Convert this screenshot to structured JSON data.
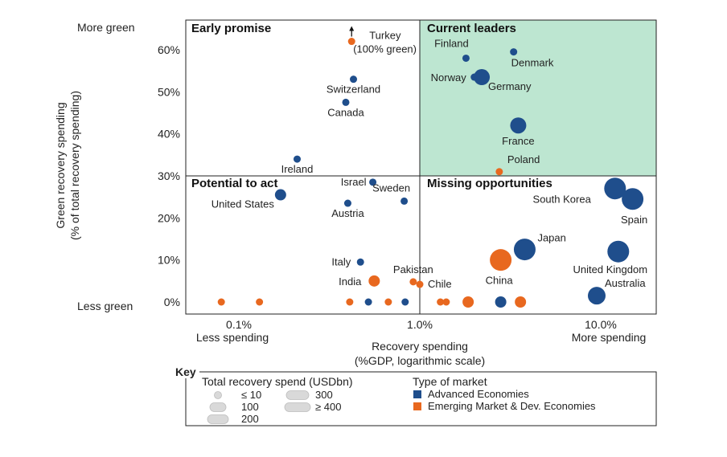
{
  "chart_data": {
    "type": "scatter",
    "xlabel": "Recovery spending",
    "xlabel_sub": "(%GDP, logarithmic scale)",
    "ylabel": "Green recovery spending",
    "ylabel_sub": "(% of total recovery spending)",
    "x_scale": "log",
    "xlim": [
      0.05,
      20
    ],
    "ylim": [
      -2,
      66
    ],
    "x_ticks": [
      {
        "value": 0.1,
        "label": "0.1%"
      },
      {
        "value": 1.0,
        "label": "1.0%"
      },
      {
        "value": 10.0,
        "label": "10.0%"
      }
    ],
    "y_ticks": [
      {
        "value": 0,
        "label": "0%"
      },
      {
        "value": 10,
        "label": "10%"
      },
      {
        "value": 20,
        "label": "20%"
      },
      {
        "value": 30,
        "label": "30%"
      },
      {
        "value": 40,
        "label": "40%"
      },
      {
        "value": 50,
        "label": "50%"
      },
      {
        "value": 60,
        "label": "60%"
      }
    ],
    "y_end_labels": {
      "top": "More green",
      "bottom": "Less green"
    },
    "x_end_labels": {
      "left": "Less spending",
      "right": "More spending"
    },
    "thresholds": {
      "x": 1.0,
      "y": 30
    },
    "quadrants": [
      {
        "title": "Early promise",
        "position": "top-left"
      },
      {
        "title": "Current leaders",
        "position": "top-right",
        "fill": "#bde6d1"
      },
      {
        "title": "Potential to act",
        "position": "bottom-left"
      },
      {
        "title": "Missing opportunities",
        "position": "bottom-right"
      }
    ],
    "colors": {
      "advanced": "#1f4e8c",
      "emerging": "#e8681f",
      "quadrant_fill": "#bde6d1"
    },
    "points": [
      {
        "label": "Turkey",
        "label2": "(100% green)",
        "x": 0.42,
        "y": 62,
        "group": "emerging",
        "spend": "small",
        "off_scale": true
      },
      {
        "label": "Finland",
        "x": 1.8,
        "y": 58,
        "group": "advanced",
        "spend": "small"
      },
      {
        "label": "Denmark",
        "x": 3.3,
        "y": 59.5,
        "group": "advanced",
        "spend": "small"
      },
      {
        "label": "Norway",
        "x": 2.0,
        "y": 53.5,
        "group": "advanced",
        "spend": "small"
      },
      {
        "label": "Germany",
        "x": 2.2,
        "y": 53.5,
        "group": "advanced",
        "spend": "200"
      },
      {
        "label": "Switzerland",
        "x": 0.43,
        "y": 53,
        "group": "advanced",
        "spend": "small"
      },
      {
        "label": "Canada",
        "x": 0.39,
        "y": 47.5,
        "group": "advanced",
        "spend": "small"
      },
      {
        "label": "France",
        "x": 3.5,
        "y": 42,
        "group": "advanced",
        "spend": "200"
      },
      {
        "label": "Ireland",
        "x": 0.21,
        "y": 34,
        "group": "advanced",
        "spend": "small"
      },
      {
        "label": "Poland",
        "x": 2.75,
        "y": 31,
        "group": "emerging",
        "spend": "small"
      },
      {
        "label": "Israel",
        "x": 0.55,
        "y": 28.5,
        "group": "advanced",
        "spend": "small"
      },
      {
        "label": "Sweden",
        "x": 0.82,
        "y": 24,
        "group": "advanced",
        "spend": "small"
      },
      {
        "label": "Austria",
        "x": 0.4,
        "y": 23.5,
        "group": "advanced",
        "spend": "small"
      },
      {
        "label": "United States",
        "x": 0.17,
        "y": 25.5,
        "group": "advanced",
        "spend": "100"
      },
      {
        "label": "South Korea",
        "x": 12.0,
        "y": 27,
        "group": "advanced",
        "spend": ">=400"
      },
      {
        "label": "Spain",
        "x": 15.0,
        "y": 24.5,
        "group": "advanced",
        "spend": ">=400"
      },
      {
        "label": "Japan",
        "x": 3.8,
        "y": 12.5,
        "group": "advanced",
        "spend": ">=400"
      },
      {
        "label": "United Kingdom",
        "x": 12.5,
        "y": 12,
        "group": "advanced",
        "spend": ">=400"
      },
      {
        "label": "Italy",
        "x": 0.47,
        "y": 9.5,
        "group": "advanced",
        "spend": "small"
      },
      {
        "label": "China",
        "x": 2.8,
        "y": 10,
        "group": "emerging",
        "spend": ">=400"
      },
      {
        "label": "Pakistan",
        "x": 0.92,
        "y": 4.8,
        "group": "emerging",
        "spend": "small"
      },
      {
        "label": "Chile",
        "x": 1.0,
        "y": 4.2,
        "group": "emerging",
        "spend": "small"
      },
      {
        "label": "India",
        "x": 0.56,
        "y": 5,
        "group": "emerging",
        "spend": "100"
      },
      {
        "label": "Australia",
        "x": 9.5,
        "y": 1.5,
        "group": "advanced",
        "spend": "300"
      },
      {
        "label": "",
        "x": 0.08,
        "y": 0,
        "group": "emerging",
        "spend": "small"
      },
      {
        "label": "",
        "x": 0.13,
        "y": 0,
        "group": "emerging",
        "spend": "small"
      },
      {
        "label": "",
        "x": 0.41,
        "y": 0,
        "group": "emerging",
        "spend": "small"
      },
      {
        "label": "",
        "x": 0.52,
        "y": 0,
        "group": "advanced",
        "spend": "small"
      },
      {
        "label": "",
        "x": 0.67,
        "y": 0,
        "group": "emerging",
        "spend": "small"
      },
      {
        "label": "",
        "x": 0.83,
        "y": 0,
        "group": "advanced",
        "spend": "small"
      },
      {
        "label": "",
        "x": 1.3,
        "y": 0,
        "group": "emerging",
        "spend": "small"
      },
      {
        "label": "",
        "x": 1.4,
        "y": 0,
        "group": "emerging",
        "spend": "small"
      },
      {
        "label": "",
        "x": 1.85,
        "y": 0,
        "group": "emerging",
        "spend": "100"
      },
      {
        "label": "",
        "x": 2.8,
        "y": 0,
        "group": "advanced",
        "spend": "100"
      },
      {
        "label": "",
        "x": 3.6,
        "y": 0,
        "group": "emerging",
        "spend": "100"
      }
    ],
    "legend": {
      "title": "Key",
      "size_title": "Total recovery spend (USDbn)",
      "sizes": [
        "≤ 10",
        "100",
        "200",
        "300",
        "≥ 400"
      ],
      "type_title": "Type of market",
      "types": [
        {
          "label": "Advanced Economies",
          "group": "advanced"
        },
        {
          "label": "Emerging Market & Dev. Economies",
          "group": "emerging"
        }
      ]
    }
  }
}
